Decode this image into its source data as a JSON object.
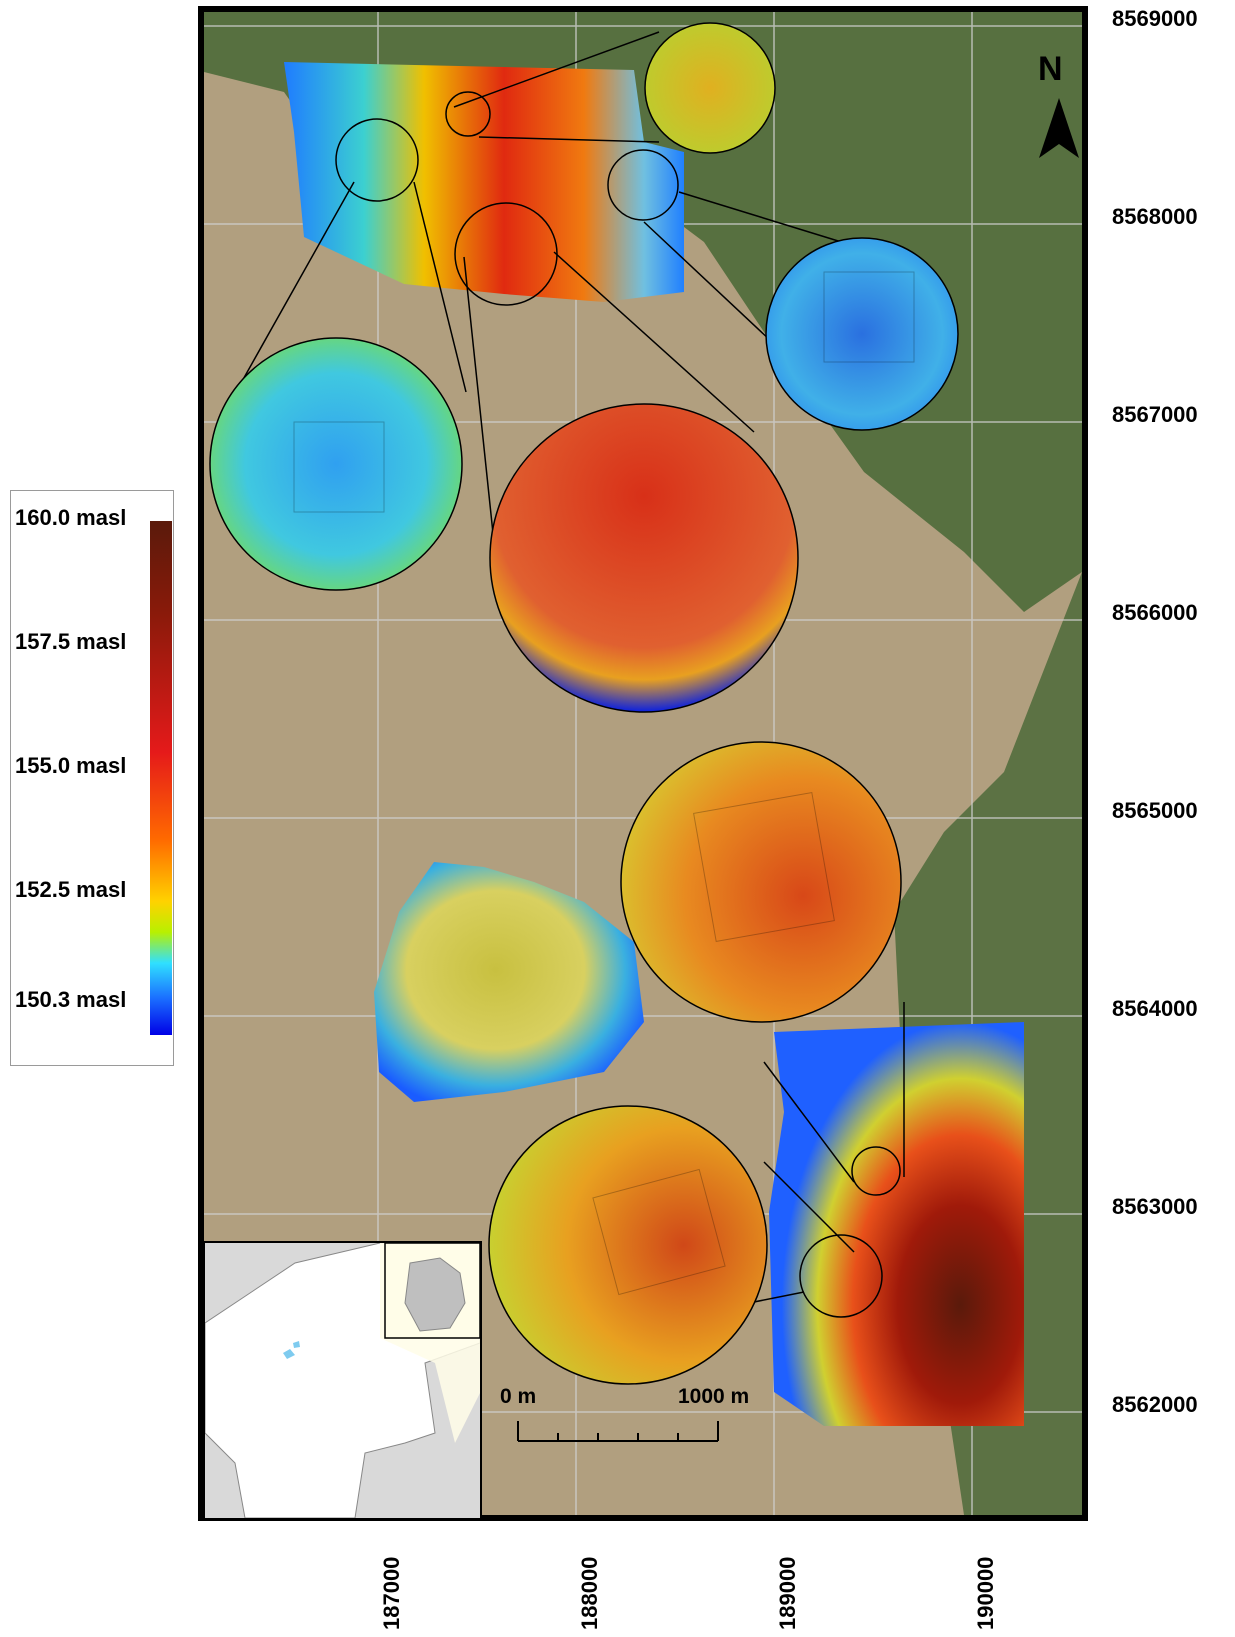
{
  "legend": {
    "labels": [
      "160.0 masl",
      "157.5 masl",
      "155.0 masl",
      "152.5 masl",
      "150.3 masl"
    ]
  },
  "axes": {
    "northing_labels": [
      "8569000",
      "8568000",
      "8567000",
      "8566000",
      "8565000",
      "8564000",
      "8563000",
      "8562000"
    ],
    "easting_labels": [
      "187000",
      "188000",
      "189000",
      "190000"
    ]
  },
  "north_arrow": {
    "label": "N",
    "icon": "north-arrow-icon"
  },
  "scale_bar": {
    "start_label": "0 m",
    "end_label": "1000 m"
  },
  "colors": {
    "background_terrain": "#b19f7f",
    "forest": "#3d5a2c",
    "frame": "#000000",
    "grid": "#c8c8c8"
  }
}
